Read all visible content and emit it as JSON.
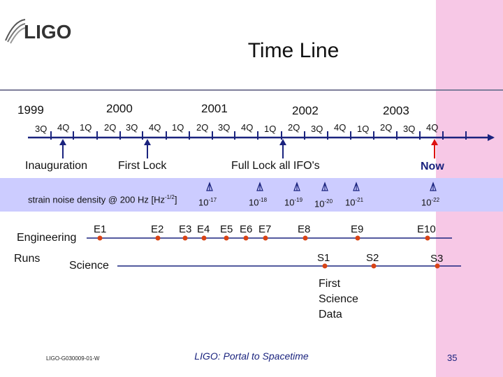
{
  "title": "Time Line",
  "logo": "LIGO",
  "years": [
    "1999",
    "2000",
    "2001",
    "2002",
    "2003"
  ],
  "quarters": [
    "3Q",
    "4Q",
    "1Q",
    "2Q",
    "3Q",
    "4Q",
    "1Q",
    "2Q",
    "3Q",
    "4Q",
    "1Q",
    "2Q",
    "3Q",
    "4Q",
    "1Q",
    "2Q",
    "3Q",
    "4Q"
  ],
  "milestones": {
    "inauguration": "Inauguration",
    "first_lock": "First Lock",
    "full_lock": "Full Lock all IFO's",
    "now": "Now"
  },
  "noise": {
    "label": "strain noise density @ 200 Hz [Hz",
    "label_exp": "-1/2",
    "label_end": "]",
    "values": [
      {
        "base": "10",
        "exp": "-17"
      },
      {
        "base": "10",
        "exp": "-18"
      },
      {
        "base": "10",
        "exp": "-19"
      },
      {
        "base": "10",
        "exp": "-20"
      },
      {
        "base": "10",
        "exp": "-21"
      },
      {
        "base": "10",
        "exp": "-22"
      }
    ]
  },
  "engineering": {
    "label": "Engineering",
    "runs": [
      "E1",
      "E2",
      "E3",
      "E4",
      "E5",
      "E6",
      "E7",
      "E8",
      "E9",
      "E10"
    ]
  },
  "runs_label": "Runs",
  "science": {
    "label": "Science",
    "runs": [
      "S1",
      "S2",
      "S3"
    ]
  },
  "first_science_data": [
    "First",
    "Science",
    "Data"
  ],
  "footer": {
    "doc_id": "LIGO-G030009-01-W",
    "tagline": "LIGO: Portal to Spacetime",
    "page": "35"
  },
  "colors": {
    "timeline": "#1a237e",
    "arrow_blue": "#1a237e",
    "arrow_red": "#dd1111",
    "dot": "#d84315",
    "band": "#ccccff",
    "pink": "#f7c8e6"
  }
}
